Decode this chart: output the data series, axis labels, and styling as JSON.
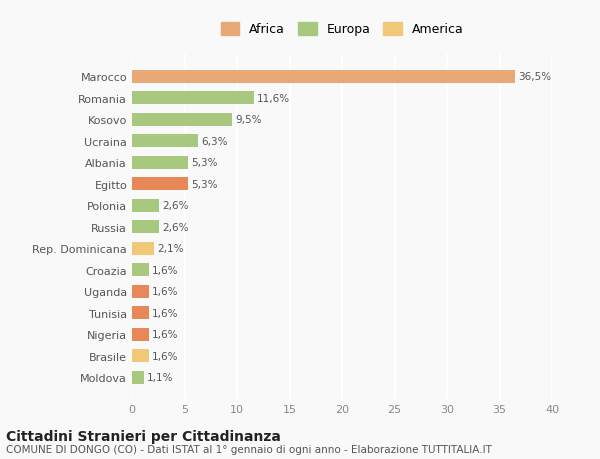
{
  "categories": [
    "Moldova",
    "Brasile",
    "Nigeria",
    "Tunisia",
    "Uganda",
    "Croazia",
    "Rep. Dominicana",
    "Russia",
    "Polonia",
    "Egitto",
    "Albania",
    "Ucraina",
    "Kosovo",
    "Romania",
    "Marocco"
  ],
  "values": [
    1.1,
    1.6,
    1.6,
    1.6,
    1.6,
    1.6,
    2.1,
    2.6,
    2.6,
    5.3,
    5.3,
    6.3,
    9.5,
    11.6,
    36.5
  ],
  "labels": [
    "1,1%",
    "1,6%",
    "1,6%",
    "1,6%",
    "1,6%",
    "1,6%",
    "2,1%",
    "2,6%",
    "2,6%",
    "5,3%",
    "5,3%",
    "6,3%",
    "9,5%",
    "11,6%",
    "36,5%"
  ],
  "colors": [
    "#a8c880",
    "#f0c878",
    "#e88858",
    "#e88858",
    "#e88858",
    "#a8c880",
    "#f0c878",
    "#a8c880",
    "#a8c880",
    "#e88858",
    "#a8c880",
    "#a8c880",
    "#a8c880",
    "#a8c880",
    "#e8a878"
  ],
  "legend": [
    {
      "label": "Africa",
      "color": "#e8a878"
    },
    {
      "label": "Europa",
      "color": "#a8c880"
    },
    {
      "label": "America",
      "color": "#f0c878"
    }
  ],
  "xlim": [
    0,
    40
  ],
  "xticks": [
    0,
    5,
    10,
    15,
    20,
    25,
    30,
    35,
    40
  ],
  "title": "Cittadini Stranieri per Cittadinanza",
  "subtitle": "COMUNE DI DONGO (CO) - Dati ISTAT al 1° gennaio di ogni anno - Elaborazione TUTTITALIA.IT",
  "background_color": "#f9f9f9",
  "grid_color": "#ffffff"
}
